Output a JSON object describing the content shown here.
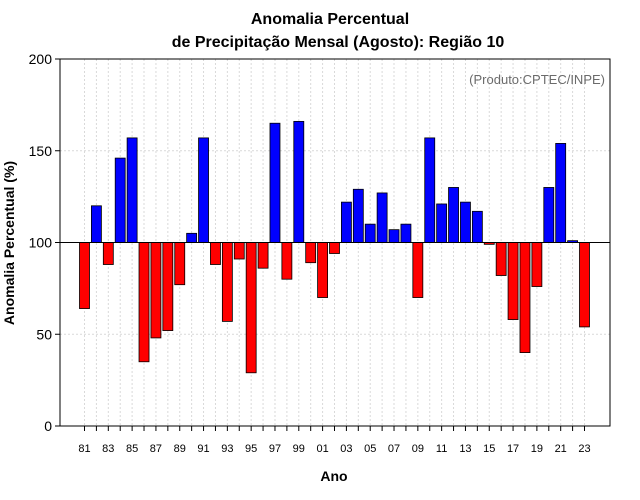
{
  "chart_data": {
    "type": "bar",
    "title_line1": "Anomalia Percentual",
    "title_line2": "de Precipitação Mensal (Agosto): Região 10",
    "xlabel": "Ano",
    "ylabel": "Anomalia Percentual (%)",
    "credit": "(Produto:CPTEC/INPE)",
    "baseline": 100,
    "ylim": [
      0,
      200
    ],
    "yticks": [
      0,
      50,
      100,
      150,
      200
    ],
    "xtick_labels": [
      "81",
      "83",
      "85",
      "87",
      "89",
      "91",
      "93",
      "95",
      "97",
      "99",
      "01",
      "03",
      "05",
      "07",
      "09",
      "11",
      "13",
      "15",
      "17",
      "19",
      "21",
      "23"
    ],
    "categories": [
      "1981",
      "1982",
      "1983",
      "1984",
      "1985",
      "1986",
      "1987",
      "1988",
      "1989",
      "1990",
      "1991",
      "1992",
      "1993",
      "1994",
      "1995",
      "1996",
      "1997",
      "1998",
      "1999",
      "2000",
      "2001",
      "2002",
      "2003",
      "2004",
      "2005",
      "2006",
      "2007",
      "2008",
      "2009",
      "2010",
      "2011",
      "2012",
      "2013",
      "2014",
      "2015",
      "2016",
      "2017",
      "2018",
      "2019",
      "2020",
      "2021",
      "2022",
      "2023"
    ],
    "values": [
      64,
      120,
      88,
      146,
      157,
      35,
      48,
      52,
      77,
      105,
      157,
      88,
      57,
      91,
      29,
      86,
      165,
      80,
      166,
      89,
      70,
      94,
      122,
      129,
      110,
      127,
      107,
      110,
      70,
      157,
      121,
      130,
      122,
      117,
      99,
      82,
      58,
      40,
      76,
      130,
      154,
      101,
      54
    ],
    "colors": {
      "above": "#0000ff",
      "below": "#ff0000",
      "edge": "#000000"
    },
    "grid": true
  }
}
